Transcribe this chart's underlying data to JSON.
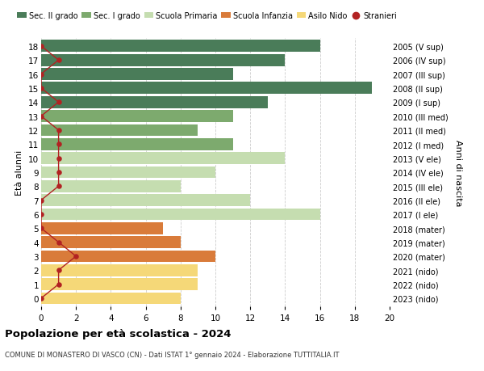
{
  "ages": [
    18,
    17,
    16,
    15,
    14,
    13,
    12,
    11,
    10,
    9,
    8,
    7,
    6,
    5,
    4,
    3,
    2,
    1,
    0
  ],
  "years": [
    "2005 (V sup)",
    "2006 (IV sup)",
    "2007 (III sup)",
    "2008 (II sup)",
    "2009 (I sup)",
    "2010 (III med)",
    "2011 (II med)",
    "2012 (I med)",
    "2013 (V ele)",
    "2014 (IV ele)",
    "2015 (III ele)",
    "2016 (II ele)",
    "2017 (I ele)",
    "2018 (mater)",
    "2019 (mater)",
    "2020 (mater)",
    "2021 (nido)",
    "2022 (nido)",
    "2023 (nido)"
  ],
  "bar_values": [
    16,
    14,
    11,
    19,
    13,
    11,
    9,
    11,
    14,
    10,
    8,
    12,
    16,
    7,
    8,
    10,
    9,
    9,
    8
  ],
  "stranieri": [
    0,
    1,
    0,
    0,
    1,
    0,
    1,
    1,
    1,
    1,
    1,
    0,
    0,
    0,
    1,
    2,
    1,
    1,
    0
  ],
  "bar_colors": [
    "#4a7c59",
    "#4a7c59",
    "#4a7c59",
    "#4a7c59",
    "#4a7c59",
    "#7daa6e",
    "#7daa6e",
    "#7daa6e",
    "#c5ddb0",
    "#c5ddb0",
    "#c5ddb0",
    "#c5ddb0",
    "#c5ddb0",
    "#d97b3a",
    "#d97b3a",
    "#d97b3a",
    "#f5d878",
    "#f5d878",
    "#f5d878"
  ],
  "legend_labels": [
    "Sec. II grado",
    "Sec. I grado",
    "Scuola Primaria",
    "Scuola Infanzia",
    "Asilo Nido",
    "Stranieri"
  ],
  "legend_colors": [
    "#4a7c59",
    "#7daa6e",
    "#c5ddb0",
    "#d97b3a",
    "#f5d878",
    "#b22222"
  ],
  "stranieri_color": "#b22222",
  "title": "Popolazione per età scolastica - 2024",
  "subtitle": "COMUNE DI MONASTERO DI VASCO (CN) - Dati ISTAT 1° gennaio 2024 - Elaborazione TUTTITALIA.IT",
  "ylabel_left": "Età alunni",
  "ylabel_right": "Anni di nascita",
  "xlim": [
    0,
    20
  ],
  "xticks": [
    0,
    2,
    4,
    6,
    8,
    10,
    12,
    14,
    16,
    18,
    20
  ],
  "grid_color": "#cccccc",
  "background_color": "#ffffff"
}
